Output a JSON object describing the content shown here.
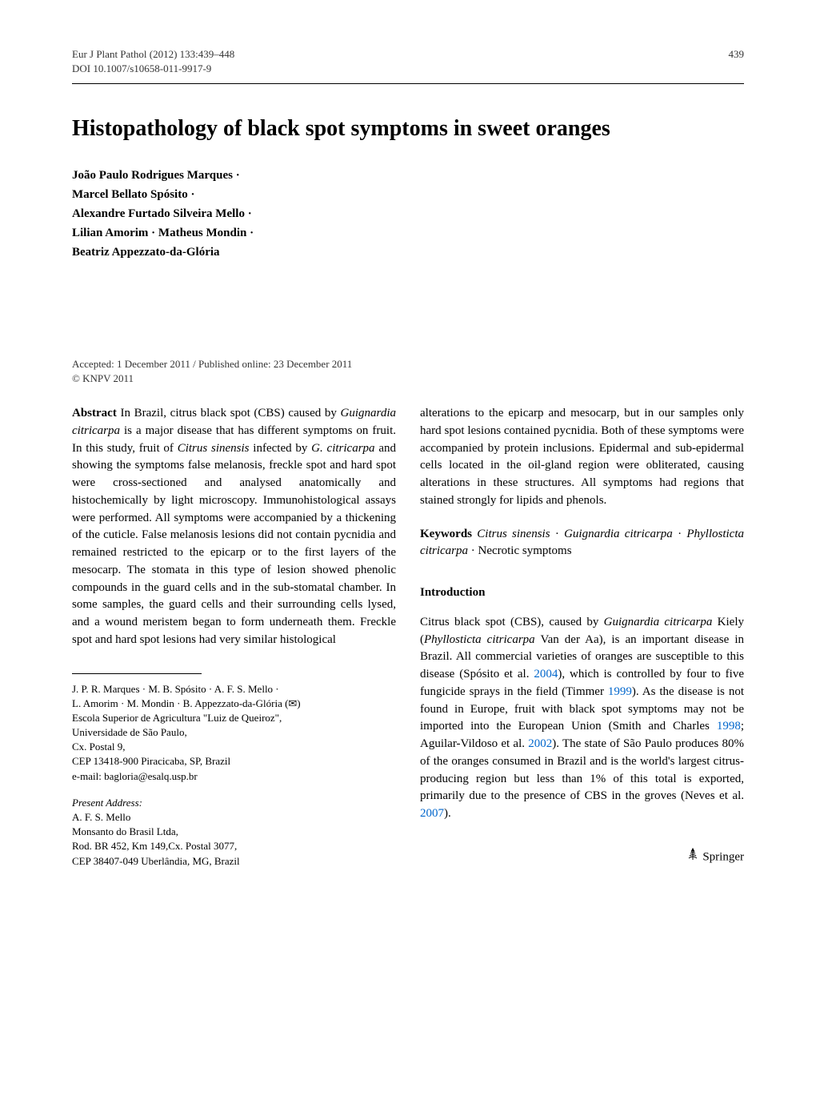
{
  "header": {
    "journal_ref": "Eur J Plant Pathol (2012) 133:439–448",
    "doi": "DOI 10.1007/s10658-011-9917-9",
    "page_number": "439"
  },
  "title": "Histopathology of black spot symptoms in sweet oranges",
  "authors": {
    "line1": "João Paulo Rodrigues Marques ·",
    "line2": "Marcel Bellato Spósito ·",
    "line3": "Alexandre Furtado Silveira Mello ·",
    "line4": "Lilian Amorim · Matheus Mondin ·",
    "line5": "Beatriz Appezzato-da-Glória"
  },
  "dates": {
    "accepted": "Accepted: 1 December 2011 / Published online: 23 December 2011",
    "copyright": "© KNPV 2011"
  },
  "abstract": {
    "label": "Abstract",
    "text_left": " In Brazil, citrus black spot (CBS) caused by Guignardia citricarpa is a major disease that has different symptoms on fruit. In this study, fruit of Citrus sinensis infected by G. citricarpa and showing the symptoms false melanosis, freckle spot and hard spot were cross-sectioned and analysed anatomically and histochemically by light microscopy. Immunohistological assays were performed. All symptoms were accompanied by a thickening of the cuticle. False melanosis lesions did not contain pycnidia and remained restricted to the epicarp or to the first layers of the mesocarp. The stomata in this type of lesion showed phenolic compounds in the guard cells and in the sub-stomatal chamber. In some samples, the guard cells and their surrounding cells lysed, and a wound meristem began to form underneath them. Freckle spot and hard spot lesions had very similar histological",
    "text_right": "alterations to the epicarp and mesocarp, but in our samples only hard spot lesions contained pycnidia. Both of these symptoms were accompanied by protein inclusions. Epidermal and sub-epidermal cells located in the oil-gland region were obliterated, causing alterations in these structures. All symptoms had regions that stained strongly for lipids and phenols."
  },
  "keywords": {
    "label": "Keywords",
    "text": " Citrus sinensis · Guignardia citricarpa · Phyllosticta citricarpa · Necrotic symptoms"
  },
  "introduction": {
    "heading": "Introduction",
    "text": "Citrus black spot (CBS), caused by Guignardia citricarpa Kiely (Phyllosticta citricarpa Van der Aa), is an important disease in Brazil. All commercial varieties of oranges are susceptible to this disease (Spósito et al. 2004), which is controlled by four to five fungicide sprays in the field (Timmer 1999). As the disease is not found in Europe, fruit with black spot symptoms may not be imported into the European Union (Smith and Charles 1998; Aguilar-Vildoso et al. 2002). The state of São Paulo produces 80% of the oranges consumed in Brazil and is the world's largest citrus-producing region but less than 1% of this total is exported, primarily due to the presence of CBS in the groves (Neves et al. 2007)."
  },
  "affiliations": {
    "block1": {
      "line1": "J. P. R. Marques · M. B. Spósito · A. F. S. Mello ·",
      "line2": "L. Amorim · M. Mondin · B. Appezzato-da-Glória (✉)",
      "line3": "Escola Superior de Agricultura \"Luiz de Queiroz\",",
      "line4": "Universidade de São Paulo,",
      "line5": "Cx. Postal 9,",
      "line6": "CEP 13418-900 Piracicaba, SP, Brazil",
      "line7": "e-mail: bagloria@esalq.usp.br"
    },
    "block2": {
      "heading": "Present Address:",
      "line1": "A. F. S. Mello",
      "line2": "Monsanto do Brasil Ltda,",
      "line3": "Rod. BR 452, Km 149,Cx. Postal 3077,",
      "line4": "CEP 38407-049 Uberlândia, MG, Brazil"
    }
  },
  "footer": {
    "publisher": "Springer"
  }
}
